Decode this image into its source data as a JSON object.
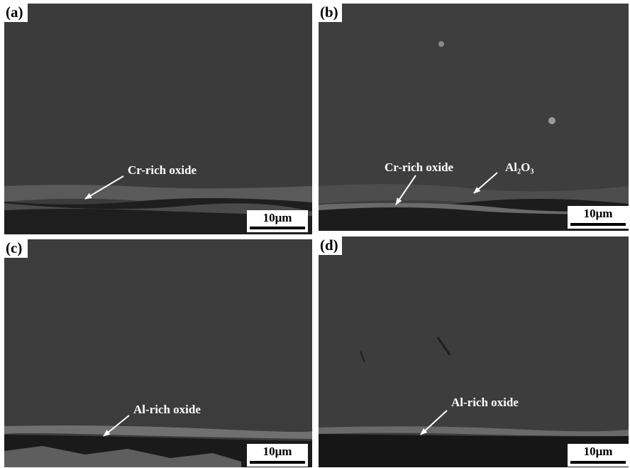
{
  "panels": [
    {
      "label": "(a)",
      "annotations": [
        "Cr-rich oxide"
      ],
      "scale_bar": "10μm"
    },
    {
      "label": "(b)",
      "annotations": [
        "Cr-rich oxide",
        "Al₂O₃"
      ],
      "scale_bar": "10μm"
    },
    {
      "label": "(c)",
      "annotations": [
        "Al-rich oxide"
      ],
      "scale_bar": "10μm"
    },
    {
      "label": "(d)",
      "annotations": [
        "Al-rich oxide"
      ],
      "scale_bar": "10μm"
    }
  ]
}
